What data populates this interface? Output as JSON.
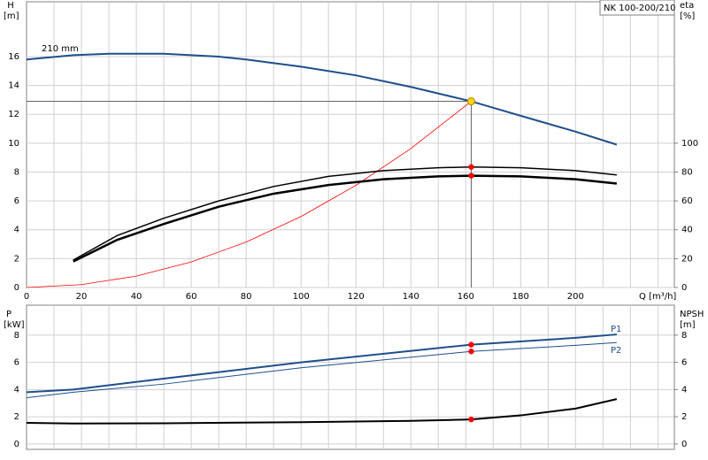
{
  "chart_data": [
    {
      "type": "line",
      "title": "NK 100-200/210",
      "y_label": "H",
      "y_unit": "[m]",
      "y2_label": "eta",
      "y2_unit": "[%]",
      "x_label": "Q [m³/h]",
      "xlim": [
        0,
        236
      ],
      "ylim": [
        0,
        19.8
      ],
      "y2lim": [
        0,
        198
      ],
      "xticks": [
        0,
        20,
        40,
        60,
        80,
        100,
        120,
        140,
        160,
        180,
        200
      ],
      "xgrid": [
        10,
        20,
        30,
        40,
        50,
        60,
        70,
        80,
        90,
        100,
        110,
        120,
        130,
        140,
        150,
        160,
        170,
        180,
        190,
        200,
        210,
        220,
        230
      ],
      "yticks": [
        0,
        2,
        4,
        6,
        8,
        10,
        12,
        14,
        16
      ],
      "y2ticks": [
        0,
        20,
        40,
        60,
        80,
        100
      ],
      "grid": true,
      "series": [
        {
          "name": "210 mm",
          "color": "#1f4e8c",
          "width": 2,
          "x": [
            0,
            17,
            30,
            50,
            70,
            80,
            100,
            120,
            140,
            162,
            180,
            200,
            215
          ],
          "values": [
            15.8,
            16.1,
            16.2,
            16.2,
            16.0,
            15.8,
            15.3,
            14.7,
            13.9,
            12.9,
            11.9,
            10.8,
            9.9
          ]
        },
        {
          "color": "#ff0000",
          "width": 0.8,
          "x": [
            0,
            20,
            40,
            60,
            80,
            100,
            120,
            140,
            162
          ],
          "values": [
            0,
            0.2,
            0.79,
            1.77,
            3.15,
            4.92,
            7.08,
            9.63,
            12.9
          ]
        },
        {
          "color": "#000000",
          "width": 1.5,
          "axis": "y2",
          "x": [
            17,
            33,
            50,
            70,
            90,
            110,
            130,
            150,
            162,
            180,
            200,
            215
          ],
          "values": [
            19,
            36,
            48,
            60,
            70,
            77,
            81,
            83,
            83.5,
            83,
            81,
            78
          ]
        },
        {
          "color": "#000000",
          "width": 2.5,
          "axis": "y2",
          "x": [
            17,
            33,
            50,
            70,
            90,
            110,
            130,
            150,
            162,
            180,
            200,
            215
          ],
          "values": [
            18,
            33,
            44,
            56,
            65,
            71,
            75,
            77,
            77.5,
            77,
            75,
            72
          ]
        },
        {
          "color": "#ff0000",
          "marker": true,
          "axis": "y2",
          "x": [
            162,
            162
          ],
          "values": [
            83.5,
            77.5
          ]
        },
        {
          "color": "#ffd700",
          "marker": true,
          "crosshair": true,
          "x": [
            162
          ],
          "values": [
            12.9
          ]
        }
      ]
    },
    {
      "type": "line",
      "y_label": "P",
      "y_unit": "[kW]",
      "y2_label": "NPSH",
      "y2_unit": "[m]",
      "xlim": [
        0,
        236
      ],
      "ylim": [
        -0.4,
        10.2
      ],
      "y2lim": [
        -0.4,
        10.2
      ],
      "xgrid": [
        10,
        20,
        30,
        40,
        50,
        60,
        70,
        80,
        90,
        100,
        110,
        120,
        130,
        140,
        150,
        160,
        170,
        180,
        190,
        200,
        210,
        220,
        230
      ],
      "yticks": [
        0,
        2,
        4,
        6,
        8
      ],
      "y2ticks": [
        0,
        2,
        4,
        6,
        8
      ],
      "grid": true,
      "series": [
        {
          "name": "P1",
          "color": "#1f4e8c",
          "width": 2,
          "x": [
            0,
            17,
            50,
            100,
            162,
            200,
            215
          ],
          "values": [
            3.8,
            4.0,
            4.8,
            6.0,
            7.3,
            7.8,
            8.05
          ]
        },
        {
          "name": "P2",
          "color": "#1f4e8c",
          "width": 1,
          "x": [
            0,
            17,
            50,
            100,
            162,
            200,
            215
          ],
          "values": [
            3.4,
            3.8,
            4.4,
            5.6,
            6.8,
            7.25,
            7.45
          ]
        },
        {
          "color": "#000000",
          "width": 2,
          "axis": "y2",
          "x": [
            0,
            17,
            50,
            100,
            140,
            162,
            180,
            200,
            215
          ],
          "values": [
            1.55,
            1.5,
            1.52,
            1.6,
            1.7,
            1.8,
            2.1,
            2.6,
            3.3
          ]
        },
        {
          "color": "#ff0000",
          "marker": true,
          "x": [
            162,
            162
          ],
          "values": [
            7.3,
            6.8
          ]
        },
        {
          "color": "#ff0000",
          "marker": true,
          "axis": "y2",
          "x": [
            162
          ],
          "values": [
            1.8
          ]
        }
      ]
    }
  ]
}
